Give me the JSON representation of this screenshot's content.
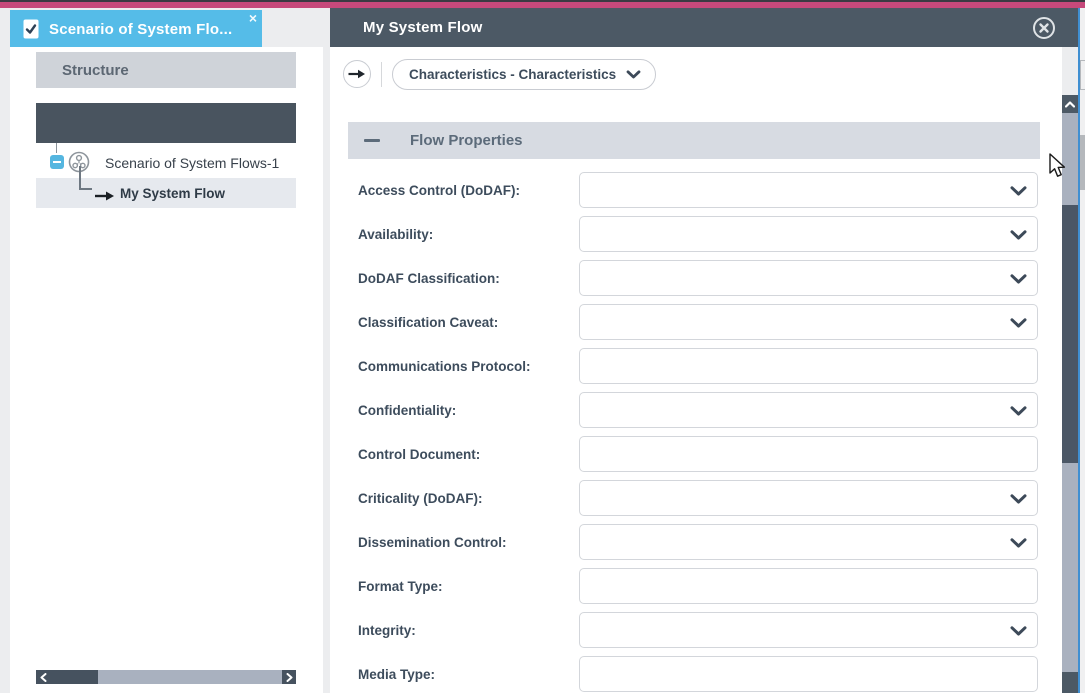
{
  "colors": {
    "accent_pink": "#c6497b",
    "tab_blue": "#55bce8",
    "header_slate": "#4c5965",
    "section_bar": "#d7dbe2",
    "scroll_thumb": "#4b5766",
    "edge_blue": "#3f8fd2"
  },
  "left_panel": {
    "tab": {
      "title": "Scenario of System Flo...",
      "close_glyph": "×"
    },
    "structure_header": "Structure",
    "tree": {
      "root": {
        "label": "Scenario of System Flows-1",
        "icon": "scenario-circle-icon",
        "expander_state": "expanded"
      },
      "child": {
        "label": "My System Flow",
        "icon": "flow-arrow-icon",
        "selected": true
      }
    }
  },
  "right_panel": {
    "title": "My System Flow",
    "close_icon": "circled-x",
    "breadcrumb": {
      "nav_icon": "arrow-right",
      "dropdown_label": "Characteristics - Characteristics"
    },
    "section": {
      "title": "Flow Properties",
      "state": "expanded"
    },
    "fields": [
      {
        "label": "Access Control (DoDAF):",
        "type": "select",
        "value": ""
      },
      {
        "label": "Availability:",
        "type": "select",
        "value": ""
      },
      {
        "label": "DoDAF Classification:",
        "type": "select",
        "value": ""
      },
      {
        "label": "Classification Caveat:",
        "type": "select",
        "value": ""
      },
      {
        "label": "Communications Protocol:",
        "type": "text",
        "value": ""
      },
      {
        "label": "Confidentiality:",
        "type": "select",
        "value": ""
      },
      {
        "label": "Control Document:",
        "type": "text",
        "value": ""
      },
      {
        "label": "Criticality (DoDAF):",
        "type": "select",
        "value": ""
      },
      {
        "label": "Dissemination Control:",
        "type": "select",
        "value": ""
      },
      {
        "label": "Format Type:",
        "type": "text",
        "value": ""
      },
      {
        "label": "Integrity:",
        "type": "select",
        "value": ""
      },
      {
        "label": "Media Type:",
        "type": "text",
        "value": ""
      }
    ]
  }
}
